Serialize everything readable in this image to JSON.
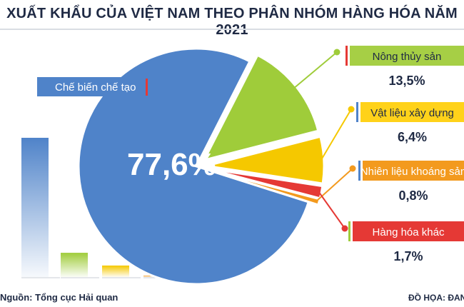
{
  "header": {
    "title": "XUẤT KHẨU CỦA VIỆT NAM THEO PHÂN NHÓM HÀNG HÓA NĂM 2021"
  },
  "footer": {
    "source": "Nguồn: Tổng cục Hải quan",
    "credit": "ĐỒ HỌA: ĐAN N"
  },
  "chart_data": {
    "type": "pie",
    "title": "XUẤT KHẨU CỦA VIỆT NAM THEO PHÂN NHÓM HÀNG HÓA NĂM 2021",
    "unit": "%",
    "slices": [
      {
        "label": "Chế biến chế tạo",
        "value": 77.6,
        "value_label": "77,6%",
        "color": "#4f83c9",
        "label_bg": "#4f83c9",
        "label_color": "#ffffff"
      },
      {
        "label": "Nông thủy sản",
        "value": 13.5,
        "value_label": "13,5%",
        "color": "#9fcc3a",
        "label_bg": "#a6cf45",
        "label_color": "#1f2a44"
      },
      {
        "label": "Vật liệu xây dựng",
        "value": 6.4,
        "value_label": "6,4%",
        "color": "#f5c800",
        "label_bg": "#ffd21a",
        "label_color": "#1f2a44"
      },
      {
        "label": "Nhiên liệu khoáng sản",
        "value": 0.8,
        "value_label": "0,8%",
        "color": "#f39a1e",
        "label_bg": "#f39a1e",
        "label_color": "#ffffff"
      },
      {
        "label": "Hàng hóa khác",
        "value": 1.7,
        "value_label": "1,7%",
        "color": "#e53935",
        "label_bg": "#e53935",
        "label_color": "#ffffff"
      }
    ],
    "accent_marker": "#e53935"
  }
}
